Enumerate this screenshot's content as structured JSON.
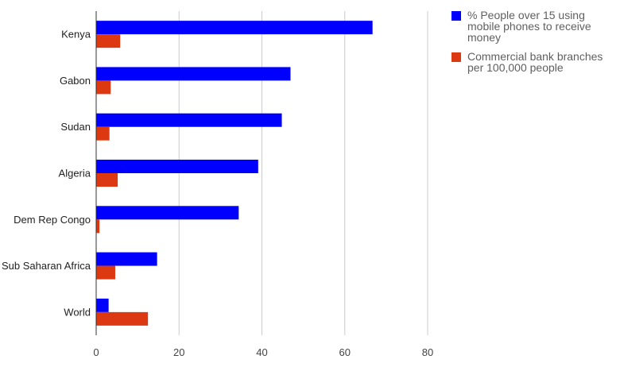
{
  "chart_data": {
    "type": "bar",
    "orientation": "horizontal",
    "categories": [
      "Kenya",
      "Gabon",
      "Sudan",
      "Algeria",
      "Dem Rep Congo",
      "Sub Saharan Africa",
      "World"
    ],
    "series": [
      {
        "name": "% People over 15 using mobile phones to receive money",
        "color": "#0000ff",
        "values": [
          66.7,
          46.9,
          44.8,
          39.1,
          34.4,
          14.7,
          3.0
        ]
      },
      {
        "name": "Commercial bank branches per 100,000 people",
        "color": "#dc3912",
        "values": [
          5.8,
          3.5,
          3.2,
          5.2,
          0.8,
          4.6,
          12.5
        ]
      }
    ],
    "xlim": [
      0,
      80
    ],
    "xticks": [
      0,
      20,
      40,
      60,
      80
    ],
    "title": "",
    "xlabel": "",
    "ylabel": "",
    "grid": true,
    "legend_position": "right"
  }
}
